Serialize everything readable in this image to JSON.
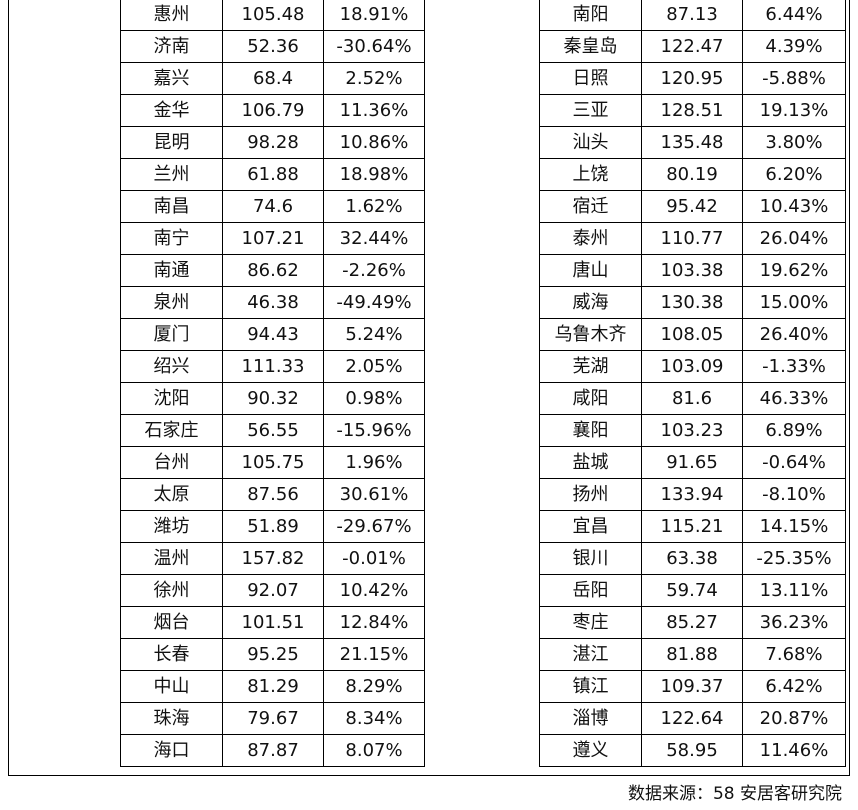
{
  "left_rows": [
    {
      "city": "惠州",
      "price": "105.48",
      "change": "18.91%"
    },
    {
      "city": "济南",
      "price": "52.36",
      "change": "-30.64%"
    },
    {
      "city": "嘉兴",
      "price": "68.4",
      "change": "2.52%"
    },
    {
      "city": "金华",
      "price": "106.79",
      "change": "11.36%"
    },
    {
      "city": "昆明",
      "price": "98.28",
      "change": "10.86%"
    },
    {
      "city": "兰州",
      "price": "61.88",
      "change": "18.98%"
    },
    {
      "city": "南昌",
      "price": "74.6",
      "change": "1.62%"
    },
    {
      "city": "南宁",
      "price": "107.21",
      "change": "32.44%"
    },
    {
      "city": "南通",
      "price": "86.62",
      "change": "-2.26%"
    },
    {
      "city": "泉州",
      "price": "46.38",
      "change": "-49.49%"
    },
    {
      "city": "厦门",
      "price": "94.43",
      "change": "5.24%"
    },
    {
      "city": "绍兴",
      "price": "111.33",
      "change": "2.05%"
    },
    {
      "city": "沈阳",
      "price": "90.32",
      "change": "0.98%"
    },
    {
      "city": "石家庄",
      "price": "56.55",
      "change": "-15.96%"
    },
    {
      "city": "台州",
      "price": "105.75",
      "change": "1.96%"
    },
    {
      "city": "太原",
      "price": "87.56",
      "change": "30.61%"
    },
    {
      "city": "潍坊",
      "price": "51.89",
      "change": "-29.67%"
    },
    {
      "city": "温州",
      "price": "157.82",
      "change": "-0.01%"
    },
    {
      "city": "徐州",
      "price": "92.07",
      "change": "10.42%"
    },
    {
      "city": "烟台",
      "price": "101.51",
      "change": "12.84%"
    },
    {
      "city": "长春",
      "price": "95.25",
      "change": "21.15%"
    },
    {
      "city": "中山",
      "price": "81.29",
      "change": "8.29%"
    },
    {
      "city": "珠海",
      "price": "79.67",
      "change": "8.34%"
    },
    {
      "city": "海口",
      "price": "87.87",
      "change": "8.07%"
    }
  ],
  "right_rows": [
    {
      "city": "南阳",
      "price": "87.13",
      "change": "6.44%"
    },
    {
      "city": "秦皇岛",
      "price": "122.47",
      "change": "4.39%"
    },
    {
      "city": "日照",
      "price": "120.95",
      "change": "-5.88%"
    },
    {
      "city": "三亚",
      "price": "128.51",
      "change": "19.13%"
    },
    {
      "city": "汕头",
      "price": "135.48",
      "change": "3.80%"
    },
    {
      "city": "上饶",
      "price": "80.19",
      "change": "6.20%"
    },
    {
      "city": "宿迁",
      "price": "95.42",
      "change": "10.43%"
    },
    {
      "city": "泰州",
      "price": "110.77",
      "change": "26.04%"
    },
    {
      "city": "唐山",
      "price": "103.38",
      "change": "19.62%"
    },
    {
      "city": "威海",
      "price": "130.38",
      "change": "15.00%"
    },
    {
      "city": "乌鲁木齐",
      "price": "108.05",
      "change": "26.40%"
    },
    {
      "city": "芜湖",
      "price": "103.09",
      "change": "-1.33%"
    },
    {
      "city": "咸阳",
      "price": "81.6",
      "change": "46.33%"
    },
    {
      "city": "襄阳",
      "price": "103.23",
      "change": "6.89%"
    },
    {
      "city": "盐城",
      "price": "91.65",
      "change": "-0.64%"
    },
    {
      "city": "扬州",
      "price": "133.94",
      "change": "-8.10%"
    },
    {
      "city": "宜昌",
      "price": "115.21",
      "change": "14.15%"
    },
    {
      "city": "银川",
      "price": "63.38",
      "change": "-25.35%"
    },
    {
      "city": "岳阳",
      "price": "59.74",
      "change": "13.11%"
    },
    {
      "city": "枣庄",
      "price": "85.27",
      "change": "36.23%"
    },
    {
      "city": "湛江",
      "price": "81.88",
      "change": "7.68%"
    },
    {
      "city": "镇江",
      "price": "109.37",
      "change": "6.42%"
    },
    {
      "city": "淄博",
      "price": "122.64",
      "change": "20.87%"
    },
    {
      "city": "遵义",
      "price": "58.95",
      "change": "11.46%"
    }
  ],
  "source": "数据来源：58 安居客研究院"
}
